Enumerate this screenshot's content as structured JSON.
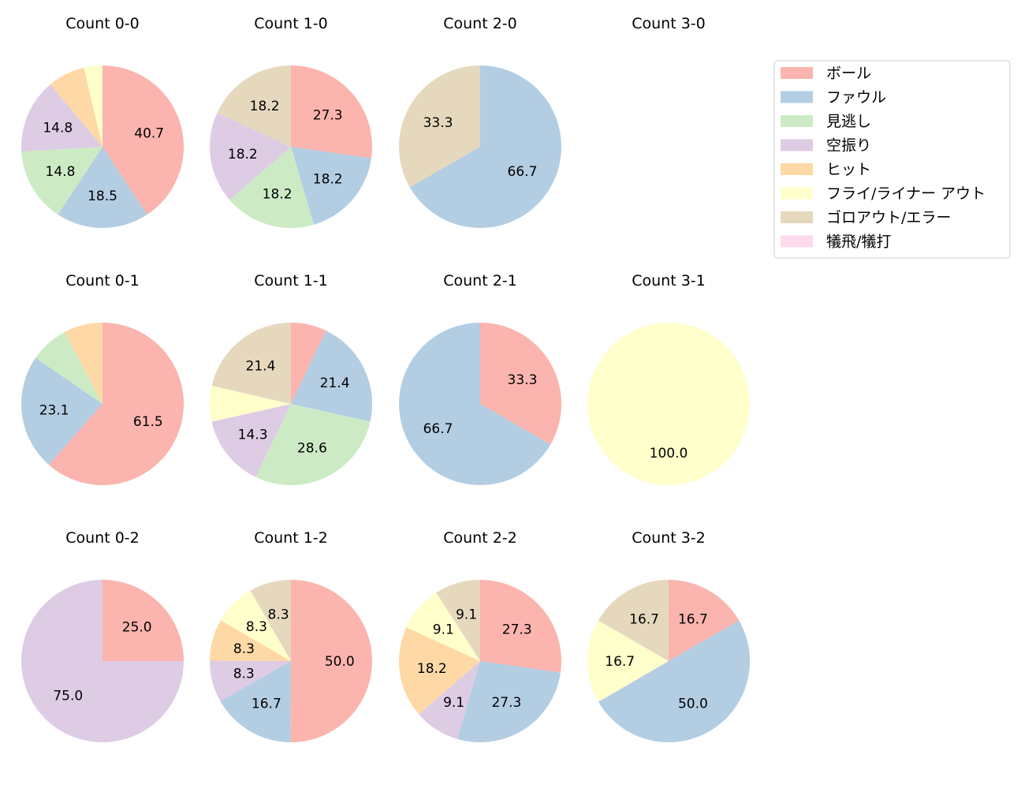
{
  "chart_data": {
    "type": "pie",
    "categories": [
      "ボール",
      "ファウル",
      "見逃し",
      "空振り",
      "ヒット",
      "フライ/ライナー アウト",
      "ゴロアウト/エラー",
      "犠飛/犠打"
    ],
    "colors": [
      "#fbb4ae",
      "#b3cde3",
      "#ccebc5",
      "#decbe4",
      "#fed9a6",
      "#ffffcc",
      "#e5d8bd",
      "#fddaec"
    ],
    "start_angle": "top",
    "direction": "clockwise",
    "legend_position": "right",
    "pies": [
      {
        "title": "Count 0-0",
        "values": [
          40.7,
          18.5,
          14.8,
          14.8,
          7.4,
          3.7,
          0,
          0
        ]
      },
      {
        "title": "Count 1-0",
        "values": [
          27.3,
          18.2,
          18.2,
          18.2,
          0,
          0,
          18.2,
          0
        ]
      },
      {
        "title": "Count 2-0",
        "values": [
          0,
          66.7,
          0,
          0,
          0,
          0,
          33.3,
          0
        ]
      },
      {
        "title": "Count 3-0",
        "values": [
          0,
          0,
          0,
          0,
          0,
          0,
          0,
          0
        ]
      },
      {
        "title": "Count 0-1",
        "values": [
          61.5,
          23.1,
          7.7,
          0,
          7.7,
          0,
          0,
          0
        ]
      },
      {
        "title": "Count 1-1",
        "values": [
          7.1,
          21.4,
          28.6,
          14.3,
          0,
          7.1,
          21.4,
          0
        ]
      },
      {
        "title": "Count 2-1",
        "values": [
          33.3,
          66.7,
          0,
          0,
          0,
          0,
          0,
          0
        ]
      },
      {
        "title": "Count 3-1",
        "values": [
          0,
          0,
          0,
          0,
          0,
          100.0,
          0,
          0
        ]
      },
      {
        "title": "Count 0-2",
        "values": [
          25.0,
          0,
          0,
          75.0,
          0,
          0,
          0,
          0
        ]
      },
      {
        "title": "Count 1-2",
        "values": [
          50.0,
          16.7,
          0,
          8.3,
          8.3,
          8.3,
          8.3,
          0
        ]
      },
      {
        "title": "Count 2-2",
        "values": [
          27.3,
          27.3,
          0,
          9.1,
          18.2,
          9.1,
          9.1,
          0
        ]
      },
      {
        "title": "Count 3-2",
        "values": [
          16.7,
          50.0,
          0,
          0,
          0,
          16.7,
          16.7,
          0
        ]
      }
    ]
  }
}
